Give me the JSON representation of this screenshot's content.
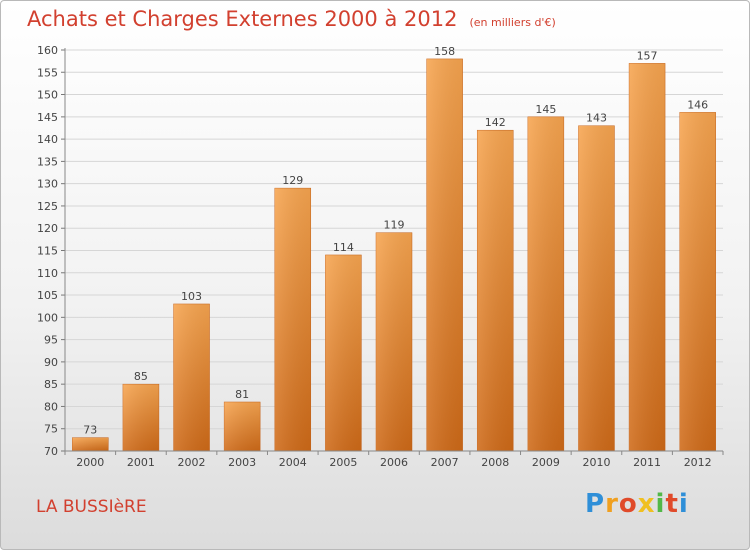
{
  "chart_data": {
    "type": "bar",
    "title": "Achats et Charges Externes 2000 à 2012",
    "subtitle": "(en milliers d'€)",
    "categories": [
      "2000",
      "2001",
      "2002",
      "2003",
      "2004",
      "2005",
      "2006",
      "2007",
      "2008",
      "2009",
      "2010",
      "2011",
      "2012"
    ],
    "values": [
      73,
      85,
      103,
      81,
      129,
      114,
      119,
      158,
      142,
      145,
      143,
      157,
      146
    ],
    "data_labels": [
      "73",
      "85",
      "103",
      "81",
      "129",
      "114",
      "119",
      "158",
      "142",
      "145",
      "143",
      "157",
      "146"
    ],
    "ylim": [
      70,
      160
    ],
    "yticks": [
      70,
      75,
      80,
      85,
      90,
      95,
      100,
      105,
      110,
      115,
      120,
      125,
      130,
      135,
      140,
      145,
      150,
      155,
      160
    ],
    "grid": true,
    "xlabel": "",
    "ylabel": "",
    "bar_color": "#f08a2c"
  },
  "footer": {
    "location": "LA BUSSIèRE",
    "brand_letters": [
      "P",
      "r",
      "o",
      "x",
      "i",
      "t",
      "i"
    ],
    "brand_colors": [
      "#2f8fd8",
      "#f0a020",
      "#e04a2a",
      "#f0c020",
      "#52b848",
      "#e04a2a",
      "#2f8fd8"
    ]
  }
}
